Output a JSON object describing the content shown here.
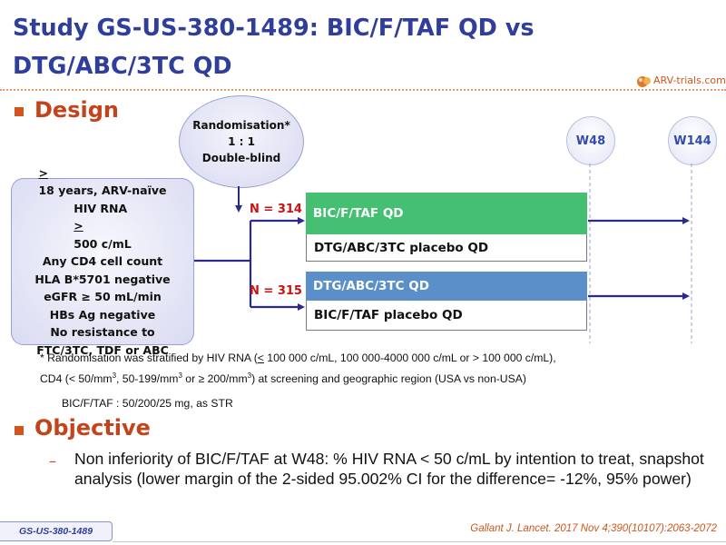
{
  "slide": {
    "title": "Study GS-US-380-1489: BIC/F/TAF QD vs DTG/ABC/3TC QD",
    "logo_text": "ARV-trials.com",
    "study_tag": "GS-US-380-1489",
    "reference": "Gallant J. Lancet. 2017 Nov 4;390(10107):2063-2072"
  },
  "design": {
    "heading": "Design",
    "randomisation": {
      "line1": "Randomisation*",
      "line2": "1 : 1",
      "line3": "Double-blind"
    },
    "weeks": [
      "W48",
      "W144"
    ],
    "criteria": {
      "line1_sym": ">",
      "line1_rest": " 18 years, ARV-naïve",
      "line2_pre": "HIV RNA ",
      "line2_sym": ">",
      "line2_post": " 500 c/mL",
      "line3": "Any CD4 cell count",
      "line4": "HLA B*5701 negative",
      "line5": "eGFR ≥ 50 mL/min",
      "line6": "HBs Ag negative",
      "line7": "No resistance to",
      "line8": "FTC/3TC, TDF or ABC"
    },
    "arms": [
      {
        "n_label": "N = 314",
        "active": "BIC/F/TAF QD",
        "placebo": "DTG/ABC/3TC placebo QD"
      },
      {
        "n_label": "N = 315",
        "active": "DTG/ABC/3TC QD",
        "placebo": "BIC/F/TAF placebo QD"
      }
    ],
    "footnote": {
      "p1": "* Randomisation was stratified by HIV RNA (",
      "p1_u": "<",
      "p2": " 100 000 c/mL, 100 000-4000 000 c/mL or > 100 000 c/mL),",
      "p3": "CD4 (< 50/mm",
      "sup": "3",
      "p4": ", 50-199/mm",
      "p5": " or ≥ 200/mm",
      "p6": ") at screening and geographic region (USA vs non-USA)"
    },
    "str_note": "BIC/F/TAF : 50/200/25 mg, as STR"
  },
  "objective": {
    "heading": "Objective",
    "dash": "–",
    "text": "Non inferiority of BIC/F/TAF at W48: % HIV RNA < 50 c/mL by intention to treat, snapshot analysis (lower margin of the 2-sided 95.002% CI for the difference= -12%, 95% power)"
  },
  "colors": {
    "title": "#2e3e9a",
    "heading": "#c4431a",
    "arm_bic": "#45c072",
    "arm_dtg": "#5b8fc9",
    "arrow": "#2b2b8c",
    "n_label": "#cc1111"
  },
  "icons": [
    "arv-trials-logo-icon",
    "arrow-right-icon",
    "bullet-square-icon"
  ]
}
